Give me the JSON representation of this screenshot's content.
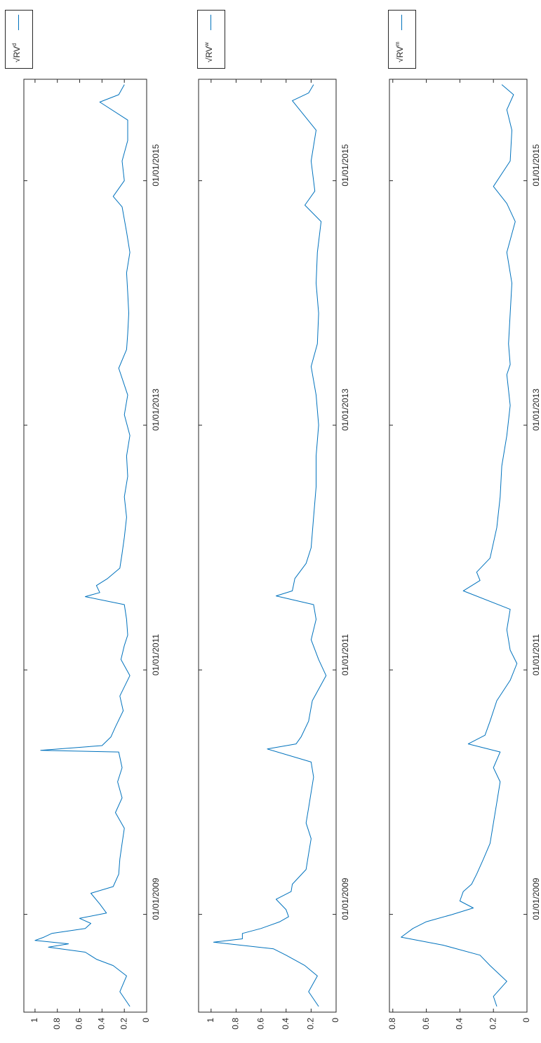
{
  "chart_data": [
    {
      "type": "line",
      "series": [
        {
          "name": "√RV^d",
          "name_base": "√RV",
          "name_sup": "d",
          "color": "#0072bd",
          "x": [
            "2008-04-01",
            "2008-05-15",
            "2008-07-01",
            "2008-08-01",
            "2008-08-20",
            "2008-09-10",
            "2008-09-25",
            "2008-10-05",
            "2008-10-15",
            "2008-10-25",
            "2008-11-05",
            "2008-11-20",
            "2008-12-05",
            "2008-12-20",
            "2009-01-05",
            "2009-02-01",
            "2009-03-05",
            "2009-03-25",
            "2009-05-01",
            "2009-06-15",
            "2009-08-01",
            "2009-09-15",
            "2009-11-01",
            "2009-12-15",
            "2010-02-01",
            "2010-03-15",
            "2010-05-01",
            "2010-05-06",
            "2010-05-20",
            "2010-06-15",
            "2010-07-15",
            "2010-09-01",
            "2010-10-15",
            "2010-12-15",
            "2011-02-01",
            "2011-03-15",
            "2011-04-15",
            "2011-06-01",
            "2011-07-15",
            "2011-08-08",
            "2011-08-20",
            "2011-09-10",
            "2011-10-01",
            "2011-11-01",
            "2011-12-15",
            "2012-02-01",
            "2012-04-01",
            "2012-06-01",
            "2012-08-01",
            "2012-10-01",
            "2012-12-01",
            "2013-02-01",
            "2013-04-01",
            "2013-06-20",
            "2013-08-15",
            "2013-10-01",
            "2013-12-01",
            "2014-02-01",
            "2014-04-01",
            "2014-06-01",
            "2014-08-01",
            "2014-10-15",
            "2014-11-15",
            "2015-01-01",
            "2015-03-01",
            "2015-05-01",
            "2015-07-01",
            "2015-08-24",
            "2015-09-15",
            "2015-10-15"
          ],
          "y": [
            0.15,
            0.24,
            0.18,
            0.3,
            0.45,
            0.55,
            0.88,
            0.7,
            1.0,
            0.92,
            0.85,
            0.55,
            0.5,
            0.6,
            0.36,
            0.42,
            0.5,
            0.3,
            0.25,
            0.24,
            0.22,
            0.2,
            0.28,
            0.22,
            0.26,
            0.22,
            0.25,
            0.95,
            0.4,
            0.32,
            0.28,
            0.21,
            0.24,
            0.15,
            0.23,
            0.2,
            0.17,
            0.18,
            0.2,
            0.55,
            0.42,
            0.45,
            0.35,
            0.24,
            0.22,
            0.2,
            0.18,
            0.2,
            0.17,
            0.18,
            0.15,
            0.2,
            0.17,
            0.25,
            0.18,
            0.17,
            0.16,
            0.17,
            0.18,
            0.15,
            0.18,
            0.22,
            0.3,
            0.2,
            0.22,
            0.17,
            0.17,
            0.42,
            0.25,
            0.2
          ]
        }
      ],
      "xlim": [
        "2008-03-15",
        "2015-10-31"
      ],
      "ylim": [
        0,
        1.1
      ],
      "xticks": [
        "2009-01-01",
        "2011-01-01",
        "2013-01-01",
        "2015-01-01"
      ],
      "xtick_labels": [
        "01/01/2009",
        "01/01/2011",
        "01/01/2013",
        "01/01/2015"
      ],
      "yticks": [
        0,
        0.2,
        0.4,
        0.6,
        0.8,
        1
      ],
      "ytick_labels": [
        "0",
        "0.2",
        "0.4",
        "0.6",
        "0.8",
        "1"
      ],
      "title": "",
      "xlabel": "",
      "ylabel": "",
      "grid": false,
      "legend": "top"
    },
    {
      "type": "line",
      "series": [
        {
          "name": "√RV^w",
          "name_base": "√RV",
          "name_sup": "w",
          "color": "#0072bd",
          "x": [
            "2008-04-01",
            "2008-05-15",
            "2008-07-01",
            "2008-08-01",
            "2008-09-01",
            "2008-09-20",
            "2008-10-10",
            "2008-10-20",
            "2008-11-05",
            "2008-11-20",
            "2008-12-10",
            "2008-12-25",
            "2009-01-15",
            "2009-02-15",
            "2009-03-10",
            "2009-04-01",
            "2009-05-15",
            "2009-07-01",
            "2009-08-15",
            "2009-10-01",
            "2009-11-15",
            "2010-01-01",
            "2010-02-15",
            "2010-04-01",
            "2010-05-10",
            "2010-05-25",
            "2010-06-15",
            "2010-08-01",
            "2010-10-01",
            "2010-12-15",
            "2011-02-01",
            "2011-04-01",
            "2011-06-01",
            "2011-07-15",
            "2011-08-10",
            "2011-08-25",
            "2011-10-01",
            "2011-11-15",
            "2012-01-01",
            "2012-04-01",
            "2012-07-01",
            "2012-10-01",
            "2013-01-01",
            "2013-04-01",
            "2013-06-25",
            "2013-09-01",
            "2013-12-01",
            "2014-03-01",
            "2014-06-01",
            "2014-09-01",
            "2014-10-20",
            "2014-12-01",
            "2015-03-01",
            "2015-06-01",
            "2015-08-28",
            "2015-09-20",
            "2015-10-15"
          ],
          "y": [
            0.14,
            0.22,
            0.15,
            0.25,
            0.4,
            0.5,
            0.98,
            0.75,
            0.75,
            0.6,
            0.45,
            0.38,
            0.4,
            0.48,
            0.36,
            0.35,
            0.24,
            0.22,
            0.2,
            0.24,
            0.22,
            0.2,
            0.18,
            0.2,
            0.55,
            0.32,
            0.28,
            0.22,
            0.19,
            0.08,
            0.14,
            0.2,
            0.16,
            0.18,
            0.48,
            0.35,
            0.33,
            0.24,
            0.2,
            0.18,
            0.16,
            0.16,
            0.14,
            0.16,
            0.2,
            0.15,
            0.14,
            0.16,
            0.15,
            0.12,
            0.25,
            0.17,
            0.2,
            0.16,
            0.35,
            0.22,
            0.18
          ]
        }
      ],
      "xlim": [
        "2008-03-15",
        "2015-10-31"
      ],
      "ylim": [
        0,
        1.1
      ],
      "xticks": [
        "2009-01-01",
        "2011-01-01",
        "2013-01-01",
        "2015-01-01"
      ],
      "xtick_labels": [
        "01/01/2009",
        "01/01/2011",
        "01/01/2013",
        "01/01/2015"
      ],
      "yticks": [
        0,
        0.2,
        0.4,
        0.6,
        0.8,
        1
      ],
      "ytick_labels": [
        "0",
        "0.2",
        "0.4",
        "0.6",
        "0.8",
        "1"
      ],
      "title": "",
      "xlabel": "",
      "ylabel": "",
      "grid": false,
      "legend": "top"
    },
    {
      "type": "line",
      "series": [
        {
          "name": "√RV^m",
          "name_base": "√RV",
          "name_sup": "m",
          "color": "#0072bd",
          "x": [
            "2008-04-01",
            "2008-05-01",
            "2008-06-15",
            "2008-08-01",
            "2008-09-01",
            "2008-10-01",
            "2008-10-25",
            "2008-11-20",
            "2008-12-10",
            "2008-12-31",
            "2009-01-20",
            "2009-02-10",
            "2009-03-10",
            "2009-04-01",
            "2009-05-01",
            "2009-06-15",
            "2009-08-01",
            "2009-10-01",
            "2009-12-01",
            "2010-02-01",
            "2010-03-15",
            "2010-05-01",
            "2010-05-25",
            "2010-06-20",
            "2010-08-01",
            "2010-10-01",
            "2010-12-01",
            "2011-01-20",
            "2011-03-01",
            "2011-05-01",
            "2011-07-01",
            "2011-08-25",
            "2011-09-25",
            "2011-10-20",
            "2011-12-01",
            "2012-03-01",
            "2012-06-01",
            "2012-09-01",
            "2012-12-01",
            "2013-03-01",
            "2013-06-01",
            "2013-07-01",
            "2013-09-01",
            "2013-12-01",
            "2014-03-01",
            "2014-06-01",
            "2014-09-01",
            "2014-10-25",
            "2014-12-15",
            "2015-03-01",
            "2015-06-01",
            "2015-08-01",
            "2015-09-15",
            "2015-10-15"
          ],
          "y": [
            0.18,
            0.2,
            0.12,
            0.22,
            0.28,
            0.5,
            0.75,
            0.68,
            0.6,
            0.45,
            0.32,
            0.4,
            0.38,
            0.33,
            0.3,
            0.26,
            0.22,
            0.2,
            0.18,
            0.16,
            0.2,
            0.16,
            0.35,
            0.25,
            0.22,
            0.18,
            0.1,
            0.06,
            0.1,
            0.12,
            0.1,
            0.38,
            0.28,
            0.3,
            0.22,
            0.18,
            0.16,
            0.15,
            0.12,
            0.1,
            0.12,
            0.1,
            0.11,
            0.1,
            0.09,
            0.12,
            0.07,
            0.12,
            0.2,
            0.1,
            0.09,
            0.12,
            0.08,
            0.15
          ]
        }
      ],
      "xlim": [
        "2008-03-15",
        "2015-10-31"
      ],
      "ylim": [
        0,
        0.82
      ],
      "xticks": [
        "2009-01-01",
        "2011-01-01",
        "2013-01-01",
        "2015-01-01"
      ],
      "xtick_labels": [
        "01/01/2009",
        "01/01/2011",
        "01/01/2013",
        "01/01/2015"
      ],
      "yticks": [
        0,
        0.2,
        0.4,
        0.6,
        0.8
      ],
      "ytick_labels": [
        "0",
        "0.2",
        "0.4",
        "0.6",
        "0.8"
      ],
      "title": "",
      "xlabel": "",
      "ylabel": "",
      "grid": false,
      "legend": "top"
    }
  ]
}
